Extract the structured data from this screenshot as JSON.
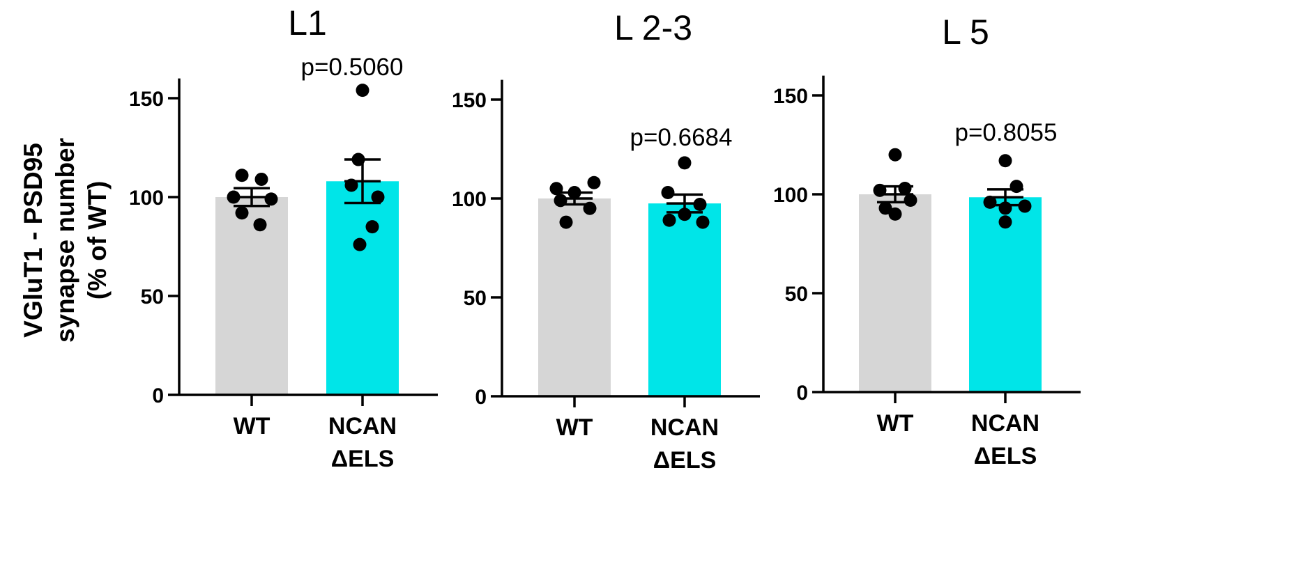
{
  "chart_data": [
    {
      "type": "bar",
      "title": "L1",
      "ylabel": [
        "VGluT1 - PSD95",
        "synapse number",
        "(% of WT)"
      ],
      "ylim": [
        0,
        160
      ],
      "yticks": [
        0,
        50,
        100,
        150
      ],
      "categories": [
        [
          "WT"
        ],
        [
          "NCAN",
          "ΔELS"
        ]
      ],
      "values": [
        100,
        108
      ],
      "sem": [
        4.5,
        11
      ],
      "colors": [
        "#d6d6d6",
        "#00e5e8"
      ],
      "points": [
        [
          111,
          109,
          100,
          99,
          92,
          86
        ],
        [
          154,
          119,
          106,
          100,
          85,
          76
        ]
      ],
      "annotation": {
        "text": "p=0.5060",
        "category": 1
      }
    },
    {
      "type": "bar",
      "title": "L 2-3",
      "ylim": [
        0,
        160
      ],
      "yticks": [
        0,
        50,
        100,
        150
      ],
      "categories": [
        [
          "WT"
        ],
        [
          "NCAN",
          "ΔELS"
        ]
      ],
      "values": [
        100,
        97.5
      ],
      "sem": [
        3,
        4.5
      ],
      "colors": [
        "#d6d6d6",
        "#00e5e8"
      ],
      "points": [
        [
          108,
          105,
          103,
          99,
          95,
          88
        ],
        [
          118,
          103,
          97,
          92,
          89,
          88
        ]
      ],
      "annotation": {
        "text": "p=0.6684",
        "category": 1
      }
    },
    {
      "type": "bar",
      "title": "L 5",
      "ylim": [
        0,
        160
      ],
      "yticks": [
        0,
        50,
        100,
        150
      ],
      "categories": [
        [
          "WT"
        ],
        [
          "NCAN",
          "ΔELS"
        ]
      ],
      "values": [
        100,
        98.5
      ],
      "sem": [
        4,
        4
      ],
      "colors": [
        "#d6d6d6",
        "#00e5e8"
      ],
      "points": [
        [
          120,
          103,
          102,
          97,
          93,
          90
        ],
        [
          117,
          104,
          96,
          94,
          93,
          86
        ]
      ],
      "annotation": {
        "text": "p=0.8055",
        "category": 1
      }
    }
  ]
}
